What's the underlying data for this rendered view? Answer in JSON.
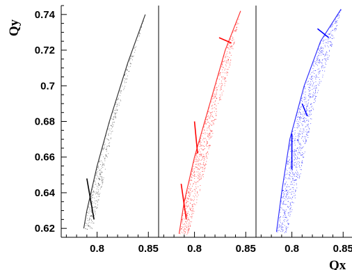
{
  "chart_data": {
    "type": "scatter",
    "title": "",
    "xlabel": "Qx",
    "ylabel": "Qy",
    "ylim": [
      0.615,
      0.745
    ],
    "yticks": [
      0.62,
      0.64,
      0.66,
      0.68,
      0.7,
      0.72,
      0.74
    ],
    "ytick_labels": [
      "0.62",
      "0.64",
      "0.66",
      "0.68",
      "0.7",
      "0.72",
      "0.74"
    ],
    "grid": false,
    "legend": "none",
    "panels": [
      {
        "color": "#000000",
        "xlim": [
          0.765,
          0.86
        ],
        "xticks": [
          0.8,
          0.85
        ],
        "xtick_labels": [
          "0.8",
          "0.85"
        ],
        "series": [
          {
            "kind": "band",
            "points": [
              [
                0.847,
                0.74
              ],
              [
                0.83,
                0.713
              ],
              [
                0.812,
                0.68
              ],
              [
                0.8,
                0.655
              ],
              [
                0.79,
                0.63
              ],
              [
                0.787,
                0.62
              ],
              [
                0.795,
                0.618
              ],
              [
                0.805,
                0.645
              ],
              [
                0.815,
                0.675
              ],
              [
                0.83,
                0.706
              ],
              [
                0.847,
                0.74
              ]
            ]
          },
          {
            "kind": "streak",
            "points": [
              [
                0.79,
                0.648
              ],
              [
                0.797,
                0.625
              ]
            ]
          }
        ]
      },
      {
        "color": "#ff0000",
        "xlim": [
          0.765,
          0.86
        ],
        "xticks": [
          0.8,
          0.85
        ],
        "xtick_labels": [
          "0.8",
          "0.85"
        ],
        "series": [
          {
            "kind": "band",
            "points": [
              [
                0.845,
                0.742
              ],
              [
                0.83,
                0.72
              ],
              [
                0.815,
                0.69
              ],
              [
                0.8,
                0.66
              ],
              [
                0.79,
                0.635
              ],
              [
                0.785,
                0.617
              ],
              [
                0.793,
                0.616
              ],
              [
                0.805,
                0.64
              ],
              [
                0.82,
                0.68
              ],
              [
                0.835,
                0.712
              ],
              [
                0.845,
                0.742
              ]
            ]
          },
          {
            "kind": "streak",
            "points": [
              [
                0.787,
                0.645
              ],
              [
                0.792,
                0.625
              ]
            ]
          },
          {
            "kind": "streak",
            "points": [
              [
                0.824,
                0.727
              ],
              [
                0.836,
                0.724
              ]
            ]
          },
          {
            "kind": "streak",
            "points": [
              [
                0.8,
                0.68
              ],
              [
                0.803,
                0.662
              ]
            ]
          }
        ]
      },
      {
        "color": "#0000ff",
        "xlim": [
          0.765,
          0.86
        ],
        "xticks": [
          0.8,
          0.85
        ],
        "xtick_labels": [
          "0.8",
          "0.85"
        ],
        "series": [
          {
            "kind": "band",
            "points": [
              [
                0.848,
                0.743
              ],
              [
                0.828,
                0.725
              ],
              [
                0.812,
                0.7
              ],
              [
                0.798,
                0.67
              ],
              [
                0.79,
                0.64
              ],
              [
                0.785,
                0.618
              ],
              [
                0.795,
                0.617
              ],
              [
                0.808,
                0.65
              ],
              [
                0.822,
                0.69
              ],
              [
                0.838,
                0.72
              ],
              [
                0.848,
                0.743
              ]
            ]
          },
          {
            "kind": "streak",
            "points": [
              [
                0.8,
                0.673
              ],
              [
                0.8,
                0.653
              ]
            ]
          },
          {
            "kind": "streak",
            "points": [
              [
                0.825,
                0.732
              ],
              [
                0.836,
                0.727
              ]
            ]
          },
          {
            "kind": "streak",
            "points": [
              [
                0.81,
                0.69
              ],
              [
                0.815,
                0.683
              ]
            ]
          }
        ]
      }
    ]
  }
}
